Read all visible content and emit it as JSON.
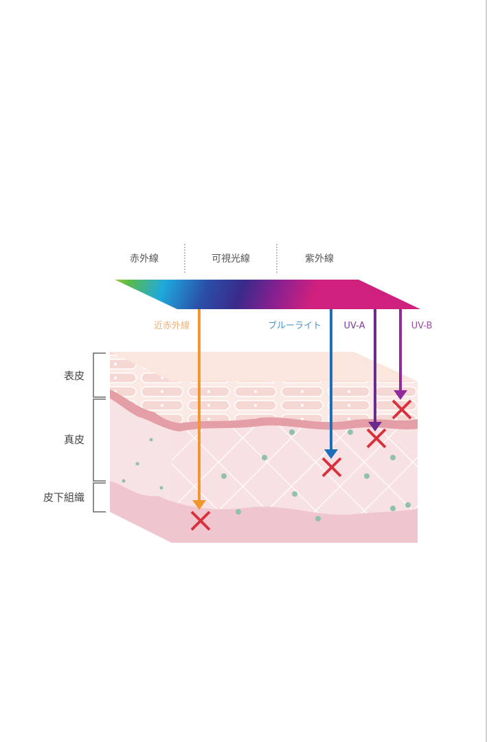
{
  "spectrum": {
    "categories": [
      "赤外線",
      "可視光線",
      "紫外線"
    ]
  },
  "rays": [
    {
      "label": "近赤外線",
      "color": "#f0962d",
      "reaches": "皮下組織"
    },
    {
      "label": "ブルーライト",
      "color": "#1a6fb8",
      "reaches": "真皮"
    },
    {
      "label": "UV-A",
      "color": "#6b2a8e",
      "reaches": "真皮"
    },
    {
      "label": "UV-B",
      "color": "#8e2a9a",
      "reaches": "表皮"
    }
  ],
  "layers": [
    "表皮",
    "真皮",
    "皮下組織"
  ],
  "colors": {
    "damage_mark": "#d9303e",
    "dermis_dot": "#8fc1ac",
    "skin": "#f6dede"
  }
}
